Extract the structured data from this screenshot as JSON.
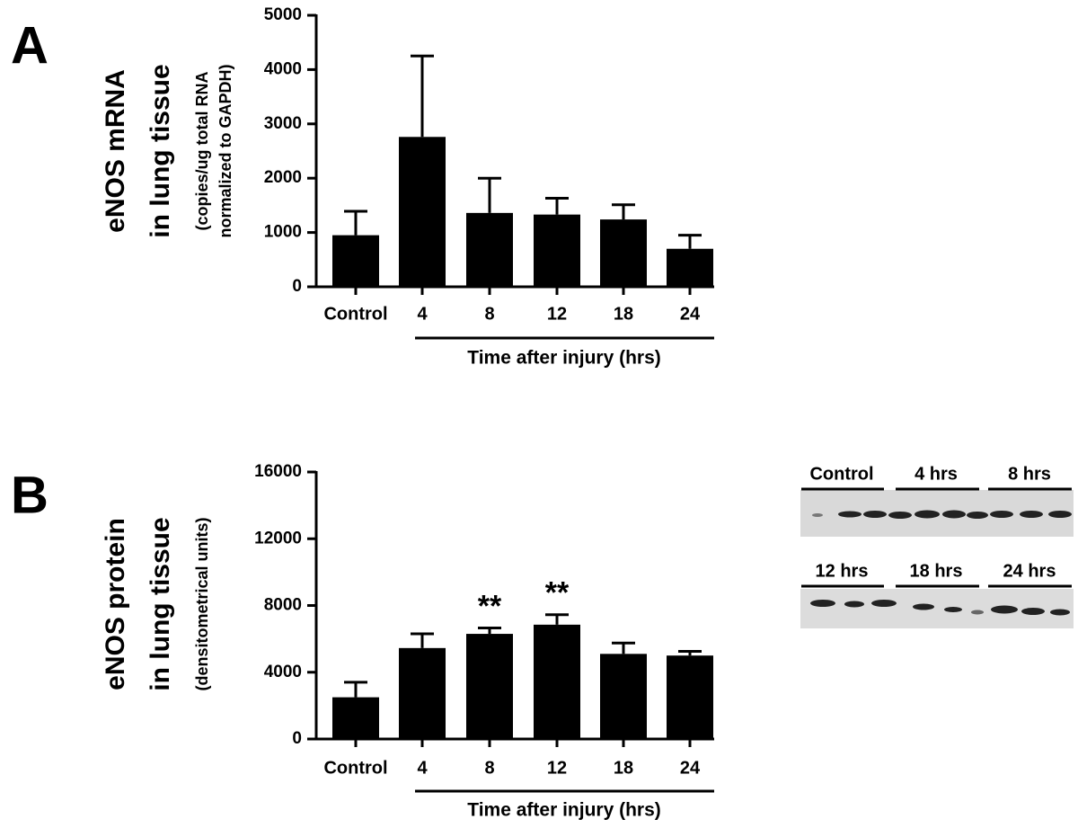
{
  "chart_data": [
    {
      "type": "bar",
      "panel": "A",
      "ylabel": [
        "eNOS mRNA",
        "in lung tissue"
      ],
      "ylabel_units": [
        "(copies/ug total RNA",
        "normalized to GAPDH)"
      ],
      "xlabel": "Time after injury (hrs)",
      "categories": [
        "Control",
        "4",
        "8",
        "12",
        "18",
        "24"
      ],
      "values": [
        950,
        2760,
        1360,
        1330,
        1240,
        700
      ],
      "errors": [
        440,
        1490,
        640,
        300,
        270,
        250
      ],
      "color": "#000000",
      "ylim": [
        0,
        5000
      ],
      "yticks": [
        0,
        1000,
        2000,
        3000,
        4000,
        5000
      ]
    },
    {
      "type": "bar",
      "panel": "B",
      "ylabel": [
        "eNOS protein",
        "in lung tissue"
      ],
      "ylabel_units": [
        "(densitometrical units)"
      ],
      "xlabel": "Time after injury (hrs)",
      "categories": [
        "Control",
        "4",
        "8",
        "12",
        "18",
        "24"
      ],
      "values": [
        2500,
        5450,
        6300,
        6850,
        5100,
        5000
      ],
      "errors": [
        900,
        850,
        350,
        600,
        650,
        250
      ],
      "significance": [
        null,
        null,
        "**",
        "**",
        null,
        null
      ],
      "color": "#000000",
      "ylim": [
        0,
        16000
      ],
      "yticks": [
        0,
        4000,
        8000,
        12000,
        16000
      ]
    }
  ],
  "blot": {
    "top_lanes": [
      "Control",
      "4 hrs",
      "8 hrs"
    ],
    "bottom_lanes": [
      "12 hrs",
      "18 hrs",
      "24 hrs"
    ]
  }
}
